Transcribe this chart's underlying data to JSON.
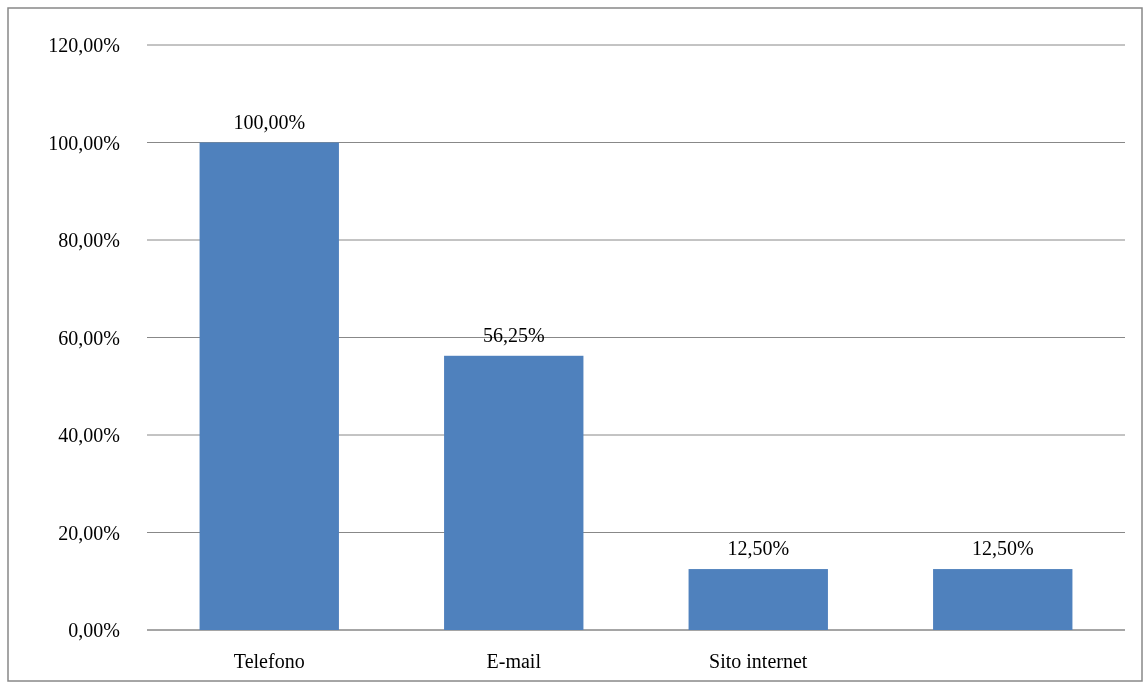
{
  "chart_data": {
    "type": "bar",
    "categories": [
      "Telefono",
      "E-mail",
      "Sito internet",
      null
    ],
    "values": [
      100,
      56.25,
      12.5,
      12.5
    ],
    "color": "#4f81bd",
    "value_labels": [
      "100,00%",
      "56,25%",
      "12,50%",
      "12,50%"
    ],
    "ylim": [
      0,
      120
    ],
    "yticks": [
      {
        "value": 0,
        "label": "0,00%"
      },
      {
        "value": 20,
        "label": "20,00%"
      },
      {
        "value": 40,
        "label": "40,00%"
      },
      {
        "value": 60,
        "label": "60,00%"
      },
      {
        "value": 80,
        "label": "80,00%"
      },
      {
        "value": 100,
        "label": "100,00%"
      },
      {
        "value": 120,
        "label": "120,00%"
      }
    ],
    "grid": "y"
  }
}
